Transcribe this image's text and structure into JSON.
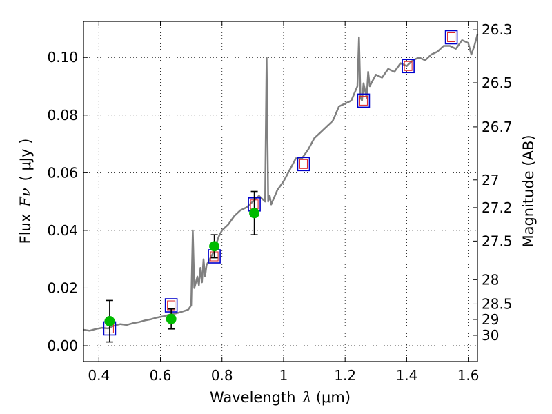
{
  "chart_data": {
    "type": "line",
    "xlabel": "Wavelength",
    "xlabel_symbol": "λ",
    "xlabel_unit": "(μm)",
    "ylabel": "Flux",
    "ylabel_symbol": "Fν",
    "ylabel_unit": "( μJy )",
    "y2label": "Magnitude (AB)",
    "xlim": [
      0.35,
      1.63
    ],
    "ylim": [
      -0.0055,
      0.1125
    ],
    "grid": true,
    "xticks": [
      0.4,
      0.6,
      0.8,
      1.0,
      1.2,
      1.4,
      1.6
    ],
    "xtick_labels": [
      "0.4",
      "0.6",
      "0.8",
      "1",
      "1.2",
      "1.4",
      "1.6"
    ],
    "yticks": [
      0.0,
      0.02,
      0.04,
      0.06,
      0.08,
      0.1
    ],
    "ytick_labels": [
      "0.00",
      "0.02",
      "0.04",
      "0.06",
      "0.08",
      "0.10"
    ],
    "y2ticks": [
      {
        "label": "26.3",
        "flux": 0.1096
      },
      {
        "label": "26.5",
        "flux": 0.0912
      },
      {
        "label": "26.7",
        "flux": 0.0759
      },
      {
        "label": "27",
        "flux": 0.0575
      },
      {
        "label": "27.2",
        "flux": 0.0479
      },
      {
        "label": "27.5",
        "flux": 0.0363
      },
      {
        "label": "28",
        "flux": 0.0229
      },
      {
        "label": "28.5",
        "flux": 0.0145
      },
      {
        "label": "29",
        "flux": 0.0091
      },
      {
        "label": "30",
        "flux": 0.0036
      }
    ],
    "colors": {
      "spectrum": "#808080",
      "model_box": "#0000cc",
      "model_inner": "#dd2222",
      "observed": "#00bb00",
      "errorbar": "#000000",
      "grid": "#000000"
    },
    "spectrum": {
      "x": [
        0.35,
        0.37,
        0.39,
        0.41,
        0.43,
        0.45,
        0.47,
        0.49,
        0.51,
        0.53,
        0.55,
        0.57,
        0.59,
        0.61,
        0.63,
        0.65,
        0.67,
        0.69,
        0.7,
        0.705,
        0.71,
        0.72,
        0.725,
        0.73,
        0.735,
        0.74,
        0.745,
        0.75,
        0.76,
        0.77,
        0.78,
        0.79,
        0.8,
        0.82,
        0.84,
        0.86,
        0.88,
        0.9,
        0.92,
        0.94,
        0.945,
        0.95,
        0.955,
        0.96,
        0.98,
        1.0,
        1.02,
        1.04,
        1.06,
        1.08,
        1.1,
        1.12,
        1.14,
        1.16,
        1.18,
        1.2,
        1.22,
        1.24,
        1.245,
        1.25,
        1.255,
        1.26,
        1.27,
        1.275,
        1.28,
        1.29,
        1.3,
        1.32,
        1.34,
        1.36,
        1.38,
        1.4,
        1.42,
        1.44,
        1.46,
        1.48,
        1.5,
        1.52,
        1.54,
        1.56,
        1.58,
        1.6,
        1.61,
        1.62,
        1.63
      ],
      "y": [
        0.0055,
        0.0052,
        0.0058,
        0.0062,
        0.006,
        0.007,
        0.0075,
        0.0072,
        0.0078,
        0.0082,
        0.0088,
        0.0092,
        0.0098,
        0.0102,
        0.0108,
        0.0112,
        0.0118,
        0.0125,
        0.014,
        0.04,
        0.02,
        0.024,
        0.021,
        0.027,
        0.022,
        0.03,
        0.024,
        0.028,
        0.03,
        0.032,
        0.035,
        0.038,
        0.04,
        0.042,
        0.045,
        0.047,
        0.048,
        0.05,
        0.052,
        0.05,
        0.1,
        0.05,
        0.052,
        0.049,
        0.054,
        0.057,
        0.061,
        0.065,
        0.065,
        0.068,
        0.072,
        0.074,
        0.076,
        0.078,
        0.083,
        0.084,
        0.085,
        0.09,
        0.107,
        0.086,
        0.085,
        0.091,
        0.086,
        0.095,
        0.09,
        0.092,
        0.094,
        0.093,
        0.096,
        0.095,
        0.098,
        0.097,
        0.099,
        0.1,
        0.099,
        0.101,
        0.102,
        0.104,
        0.104,
        0.103,
        0.106,
        0.105,
        0.101,
        0.104,
        0.108
      ]
    },
    "model_points": {
      "x": [
        0.435,
        0.635,
        0.775,
        0.905,
        1.065,
        1.26,
        1.405,
        1.545
      ],
      "y": [
        0.006,
        0.014,
        0.031,
        0.049,
        0.063,
        0.085,
        0.097,
        0.107
      ]
    },
    "observed_points": {
      "x": [
        0.435,
        0.635,
        0.775,
        0.905
      ],
      "y": [
        0.0085,
        0.0093,
        0.0345,
        0.046
      ],
      "yerr": [
        0.0072,
        0.0035,
        0.004,
        0.0075
      ]
    }
  }
}
